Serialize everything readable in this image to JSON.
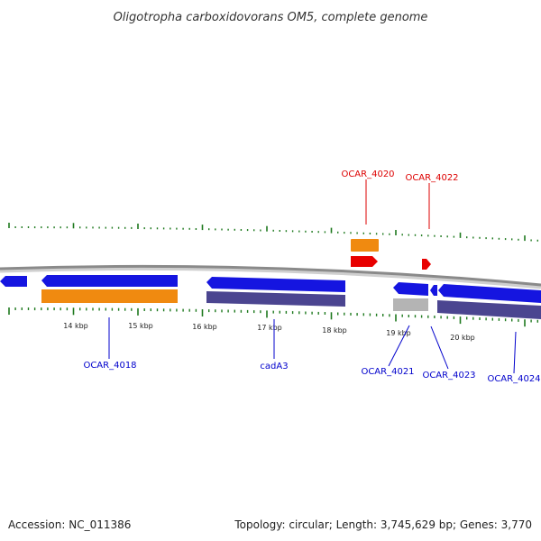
{
  "title": "Oligotropha carboxidovorans OM5, complete genome",
  "footer": {
    "accession": "Accession: NC_011386",
    "summary": "Topology: circular; Length: 3,745,629 bp; Genes: 3,770"
  },
  "colors": {
    "backbone": "#8a8a8a",
    "tick": "#1f7a1f",
    "cds_blue": "#1515e0",
    "cds_red": "#e80000",
    "bar_orange": "#f08a10",
    "bar_purple": "#4b4590",
    "bar_grey": "#b4b4b4",
    "label_blue": "#0000cc",
    "label_red": "#dd0000"
  },
  "kbp_ticks": [
    "14 kbp",
    "15 kbp",
    "16 kbp",
    "17 kbp",
    "18 kbp",
    "19 kbp",
    "20 kbp"
  ],
  "gene_labels": [
    {
      "id": "OCAR_4018",
      "text": "OCAR_4018",
      "strand": "minus"
    },
    {
      "id": "cadA3",
      "text": "cadA3",
      "strand": "minus"
    },
    {
      "id": "OCAR_4020",
      "text": "OCAR_4020",
      "strand": "plus"
    },
    {
      "id": "OCAR_4021",
      "text": "OCAR_4021",
      "strand": "minus"
    },
    {
      "id": "OCAR_4022",
      "text": "OCAR_4022",
      "strand": "plus"
    },
    {
      "id": "OCAR_4023",
      "text": "OCAR_4023",
      "strand": "minus"
    },
    {
      "id": "OCAR_4024",
      "text": "OCAR_4024",
      "strand": "minus"
    }
  ]
}
